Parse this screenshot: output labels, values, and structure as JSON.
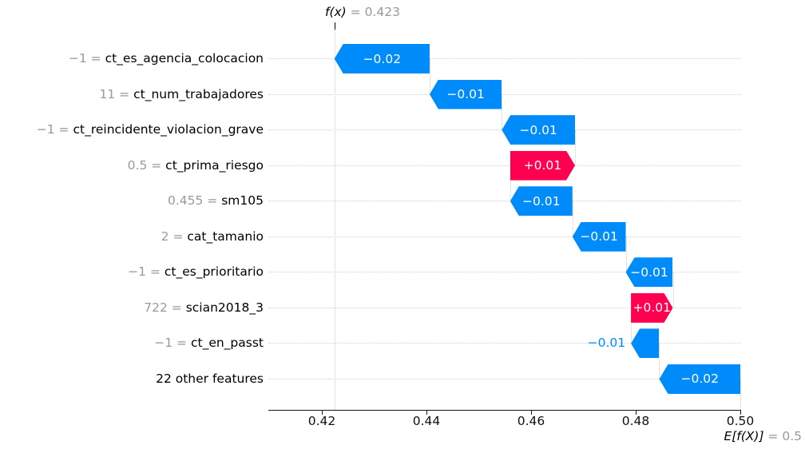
{
  "title": {
    "fx_label": "f(x)",
    "fx_value": " = 0.423"
  },
  "expected_value": {
    "label": "E[f(X)]",
    "value": " = 0.5"
  },
  "colors": {
    "positive_bar": "#ff0051",
    "negative_bar": "#008bfb",
    "bar_value_text": "#ffffff",
    "outside_value_text": "#008bfb",
    "muted_text": "#999999",
    "text": "#000000",
    "dotted_line": "#cccccc",
    "axis": "#161616"
  },
  "chart_data": {
    "type": "bar",
    "subtype": "shap-waterfall",
    "title": "f(x) = 0.423",
    "fx": 0.423,
    "base_value": 0.5,
    "base_value_label": "E[f(X)] = 0.5",
    "x_ticks": [
      0.42,
      0.44,
      0.46,
      0.48,
      0.5
    ],
    "x_tick_labels": [
      "0.42",
      "0.44",
      "0.46",
      "0.48",
      "0.50"
    ],
    "xlim": [
      0.41,
      0.5005
    ],
    "grid": "dotted-row-lines",
    "legend": "none",
    "rows": [
      {
        "data_value": "−1",
        "feature": "ct_es_agencia_colocacion",
        "label": "−0.02",
        "value": -0.02,
        "sign": "negative",
        "start": 0.4406,
        "end": 0.4224,
        "label_position": "inside"
      },
      {
        "data_value": "11",
        "feature": "ct_num_trabajadores",
        "label": "−0.01",
        "value": -0.01,
        "sign": "negative",
        "start": 0.4544,
        "end": 0.4406,
        "label_position": "inside"
      },
      {
        "data_value": "−1",
        "feature": "ct_reincidente_violacion_grave",
        "label": "−0.01",
        "value": -0.01,
        "sign": "negative",
        "start": 0.4684,
        "end": 0.4544,
        "label_position": "inside"
      },
      {
        "data_value": "0.5",
        "feature": "ct_prima_riesgo",
        "label": "+0.01",
        "value": 0.01,
        "sign": "positive",
        "start": 0.456,
        "end": 0.4684,
        "label_position": "inside"
      },
      {
        "data_value": "0.455",
        "feature": "sm105",
        "label": "−0.01",
        "value": -0.01,
        "sign": "negative",
        "start": 0.4679,
        "end": 0.456,
        "label_position": "inside"
      },
      {
        "data_value": "2",
        "feature": "cat_tamanio",
        "label": "−0.01",
        "value": -0.01,
        "sign": "negative",
        "start": 0.4781,
        "end": 0.4679,
        "label_position": "inside"
      },
      {
        "data_value": "−1",
        "feature": "ct_es_prioritario",
        "label": "−0.01",
        "value": -0.01,
        "sign": "negative",
        "start": 0.4871,
        "end": 0.4781,
        "label_position": "inside"
      },
      {
        "data_value": "722",
        "feature": "scian2018_3",
        "label": "+0.01",
        "value": 0.01,
        "sign": "positive",
        "start": 0.4791,
        "end": 0.4871,
        "label_position": "inside"
      },
      {
        "data_value": "−1",
        "feature": "ct_en_passt",
        "label": "−0.01",
        "value": -0.01,
        "sign": "negative",
        "start": 0.4845,
        "end": 0.4791,
        "label_position": "outside-left"
      },
      {
        "data_value": null,
        "feature": "22 other features",
        "label": "−0.02",
        "value": -0.02,
        "sign": "negative",
        "start": 0.5,
        "end": 0.4845,
        "label_position": "inside"
      }
    ]
  }
}
